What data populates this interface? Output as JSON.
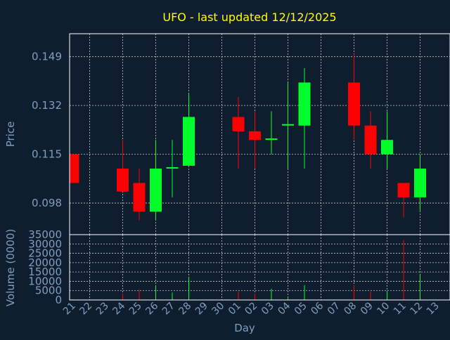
{
  "chart_data": [
    {
      "type": "candlestick",
      "title": "UFO - last updated 12/12/2025",
      "xlabel": "",
      "ylabel": "Price",
      "ylim": [
        0.087,
        0.157
      ],
      "yticks": [
        "0.098",
        "0.115",
        "0.132",
        "0.149"
      ],
      "grid": true,
      "colors": {
        "up": "#00ff2a",
        "down": "#ff0000",
        "background": "#0f1e2e",
        "text": "#7f9fbf",
        "title": "#ffff00"
      },
      "candles": [
        {
          "date": "21",
          "open": 0.115,
          "high": 0.115,
          "low": 0.105,
          "close": 0.105
        },
        {
          "date": "24",
          "open": 0.11,
          "high": 0.12,
          "low": 0.102,
          "close": 0.102
        },
        {
          "date": "25",
          "open": 0.105,
          "high": 0.11,
          "low": 0.092,
          "close": 0.095
        },
        {
          "date": "26",
          "open": 0.095,
          "high": 0.12,
          "low": 0.092,
          "close": 0.11
        },
        {
          "date": "27",
          "open": 0.11,
          "high": 0.12,
          "low": 0.1,
          "close": 0.1105
        },
        {
          "date": "28",
          "open": 0.111,
          "high": 0.136,
          "low": 0.111,
          "close": 0.128
        },
        {
          "date": "01",
          "open": 0.128,
          "high": 0.135,
          "low": 0.11,
          "close": 0.123
        },
        {
          "date": "02",
          "open": 0.123,
          "high": 0.13,
          "low": 0.11,
          "close": 0.12
        },
        {
          "date": "03",
          "open": 0.12,
          "high": 0.13,
          "low": 0.115,
          "close": 0.1205
        },
        {
          "date": "04",
          "open": 0.125,
          "high": 0.14,
          "low": 0.11,
          "close": 0.1255
        },
        {
          "date": "05",
          "open": 0.125,
          "high": 0.145,
          "low": 0.11,
          "close": 0.14
        },
        {
          "date": "08",
          "open": 0.14,
          "high": 0.15,
          "low": 0.12,
          "close": 0.125
        },
        {
          "date": "09",
          "open": 0.125,
          "high": 0.13,
          "low": 0.11,
          "close": 0.115
        },
        {
          "date": "10",
          "open": 0.115,
          "high": 0.13,
          "low": 0.11,
          "close": 0.12
        },
        {
          "date": "11",
          "open": 0.105,
          "high": 0.105,
          "low": 0.093,
          "close": 0.1
        },
        {
          "date": "12",
          "open": 0.1,
          "high": 0.115,
          "low": 0.095,
          "close": 0.11
        }
      ]
    },
    {
      "type": "bar",
      "xlabel": "Day",
      "ylabel": "Volume (0000)",
      "ylim": [
        0,
        35000
      ],
      "yticks": [
        "0",
        "5000",
        "10000",
        "15000",
        "20000",
        "25000",
        "30000",
        "35000"
      ],
      "categories": [
        "21",
        "22",
        "23",
        "24",
        "25",
        "26",
        "27",
        "28",
        "29",
        "30",
        "01",
        "02",
        "03",
        "04",
        "05",
        "06",
        "07",
        "08",
        "09",
        "10",
        "11",
        "12",
        "13"
      ],
      "volumes": [
        {
          "date": "21",
          "value": 500,
          "direction": "down"
        },
        {
          "date": "24",
          "value": 3500,
          "direction": "down"
        },
        {
          "date": "25",
          "value": 5500,
          "direction": "down"
        },
        {
          "date": "26",
          "value": 8000,
          "direction": "up"
        },
        {
          "date": "27",
          "value": 4000,
          "direction": "up"
        },
        {
          "date": "28",
          "value": 12000,
          "direction": "up"
        },
        {
          "date": "01",
          "value": 4500,
          "direction": "down"
        },
        {
          "date": "02",
          "value": 3500,
          "direction": "down"
        },
        {
          "date": "03",
          "value": 6000,
          "direction": "up"
        },
        {
          "date": "04",
          "value": 1000,
          "direction": "up"
        },
        {
          "date": "05",
          "value": 8000,
          "direction": "up"
        },
        {
          "date": "08",
          "value": 8000,
          "direction": "down"
        },
        {
          "date": "09",
          "value": 4500,
          "direction": "down"
        },
        {
          "date": "10",
          "value": 5000,
          "direction": "up"
        },
        {
          "date": "11",
          "value": 32000,
          "direction": "down"
        },
        {
          "date": "12",
          "value": 14000,
          "direction": "up"
        }
      ]
    }
  ]
}
